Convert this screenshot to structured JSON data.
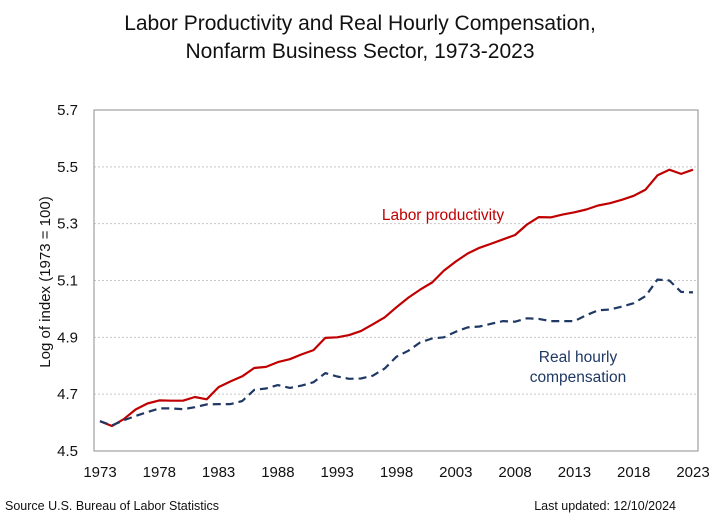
{
  "chart_data": {
    "type": "line",
    "title": "Labor Productivity and Real Hourly Compensation,",
    "subtitle": "Nonfarm Business Sector, 1973-2023",
    "xlabel": "",
    "ylabel": "Log of index (1973 = 100)",
    "xlim": [
      1973,
      2023
    ],
    "ylim": [
      4.5,
      5.7
    ],
    "xticks": [
      "1973",
      "1978",
      "1983",
      "1988",
      "1993",
      "1998",
      "2003",
      "2008",
      "2013",
      "2018",
      "2023"
    ],
    "xtick_values": [
      1973,
      1978,
      1983,
      1988,
      1993,
      1998,
      2003,
      2008,
      2013,
      2018,
      2023
    ],
    "yticks": [
      "4.5",
      "4.7",
      "4.9",
      "5.1",
      "5.3",
      "5.5",
      "5.7"
    ],
    "ytick_values": [
      4.5,
      4.7,
      4.9,
      5.1,
      5.3,
      5.5,
      5.7
    ],
    "grid": "horizontal-dotted",
    "x": [
      1973,
      1974,
      1975,
      1976,
      1977,
      1978,
      1979,
      1980,
      1981,
      1982,
      1983,
      1984,
      1985,
      1986,
      1987,
      1988,
      1989,
      1990,
      1991,
      1992,
      1993,
      1994,
      1995,
      1996,
      1997,
      1998,
      1999,
      2000,
      2001,
      2002,
      2003,
      2004,
      2005,
      2006,
      2007,
      2008,
      2009,
      2010,
      2011,
      2012,
      2013,
      2014,
      2015,
      2016,
      2017,
      2018,
      2019,
      2020,
      2021,
      2022,
      2023
    ],
    "series": [
      {
        "name": "Labor productivity",
        "color": "#C00000",
        "style": "solid",
        "values": [
          4.605,
          4.588,
          4.612,
          4.646,
          4.667,
          4.678,
          4.677,
          4.677,
          4.69,
          4.682,
          4.725,
          4.745,
          4.763,
          4.792,
          4.796,
          4.813,
          4.823,
          4.84,
          4.855,
          4.898,
          4.9,
          4.908,
          4.922,
          4.946,
          4.97,
          5.006,
          5.04,
          5.068,
          5.093,
          5.135,
          5.167,
          5.195,
          5.215,
          5.23,
          5.245,
          5.26,
          5.297,
          5.323,
          5.322,
          5.332,
          5.34,
          5.35,
          5.364,
          5.372,
          5.384,
          5.398,
          5.42,
          5.47,
          5.49,
          5.475,
          5.49
        ]
      },
      {
        "name": "Real hourly compensation",
        "color": "#1F3864",
        "style": "dashed",
        "values": [
          4.605,
          4.59,
          4.608,
          4.623,
          4.637,
          4.65,
          4.65,
          4.647,
          4.654,
          4.664,
          4.665,
          4.665,
          4.676,
          4.715,
          4.72,
          4.732,
          4.722,
          4.73,
          4.742,
          4.774,
          4.762,
          4.754,
          4.755,
          4.765,
          4.79,
          4.832,
          4.853,
          4.882,
          4.896,
          4.9,
          4.92,
          4.935,
          4.938,
          4.948,
          4.957,
          4.955,
          4.967,
          4.965,
          4.957,
          4.957,
          4.957,
          4.978,
          4.995,
          4.998,
          5.008,
          5.02,
          5.045,
          5.103,
          5.1,
          5.06,
          5.058
        ]
      }
    ],
    "annotations": [
      {
        "text": "Labor productivity",
        "series": "Labor productivity",
        "color": "#C00000"
      },
      {
        "text": "Real hourly",
        "series": "Real hourly compensation",
        "color": "#1F3864"
      },
      {
        "text": "compensation",
        "series": "Real hourly compensation",
        "color": "#1F3864"
      }
    ],
    "legend": "none (inline annotations)"
  },
  "footer": {
    "source": "Source U.S. Bureau of Labor Statistics",
    "updated": "Last updated: 12/10/2024"
  }
}
